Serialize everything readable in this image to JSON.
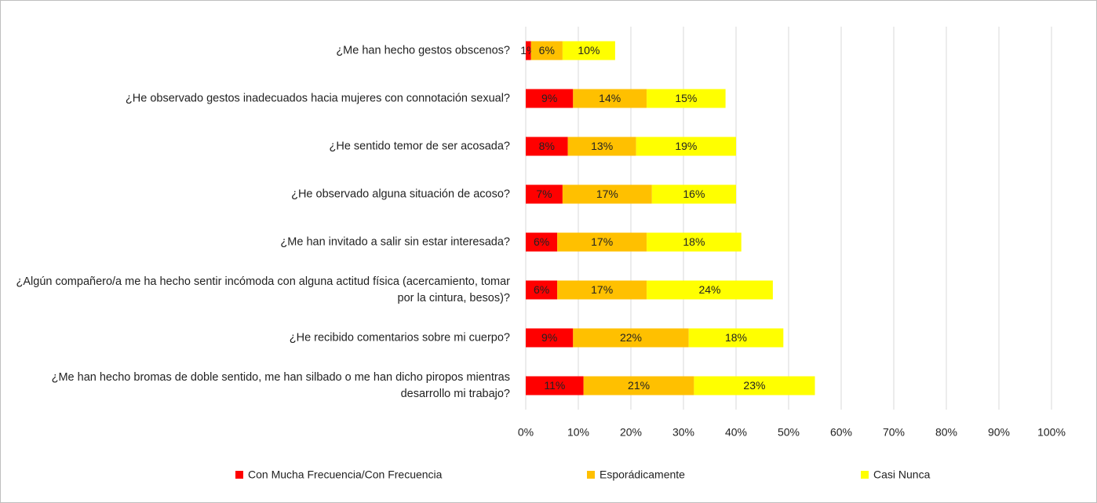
{
  "chart_data": {
    "type": "stacked_barh",
    "categories": [
      "¿Me han hecho gestos obscenos?",
      "¿He observado gestos inadecuados hacia mujeres con connotación sexual?",
      "¿He sentido temor de ser acosada?",
      "¿He observado alguna situación de acoso?",
      "¿Me han invitado a salir sin estar interesada?",
      "¿Algún compañero/a me ha hecho sentir incómoda con alguna actitud física (acercamiento, tomar por la cintura, besos)?",
      "¿He recibido comentarios sobre mi cuerpo?",
      "¿Me han hecho bromas de doble sentido, me han silbado o me han dicho piropos mientras desarrollo mi trabajo?"
    ],
    "series": [
      {
        "name": "Con Mucha Frecuencia/Con Frecuencia",
        "color": "#ff0000",
        "values": [
          1,
          9,
          8,
          7,
          6,
          6,
          9,
          11
        ],
        "value_labels": [
          "1%",
          "9%",
          "8%",
          "7%",
          "6%",
          "6%",
          "9%",
          "11%"
        ]
      },
      {
        "name": "Esporádicamente",
        "color": "#ffc000",
        "values": [
          6,
          14,
          13,
          17,
          17,
          17,
          22,
          21
        ],
        "value_labels": [
          "6%",
          "14%",
          "13%",
          "17%",
          "17%",
          "17%",
          "22%",
          "21%"
        ]
      },
      {
        "name": "Casi Nunca",
        "color": "#ffff00",
        "values": [
          10,
          15,
          19,
          16,
          18,
          24,
          18,
          23
        ],
        "value_labels": [
          "10%",
          "15%",
          "19%",
          "16%",
          "18%",
          "24%",
          "18%",
          "23%"
        ]
      }
    ],
    "xlim": [
      0,
      100
    ],
    "xticks": [
      {
        "value": 0,
        "label": "0%"
      },
      {
        "value": 10,
        "label": "10%"
      },
      {
        "value": 20,
        "label": "20%"
      },
      {
        "value": 30,
        "label": "30%"
      },
      {
        "value": 40,
        "label": "40%"
      },
      {
        "value": 50,
        "label": "50%"
      },
      {
        "value": 60,
        "label": "60%"
      },
      {
        "value": 70,
        "label": "70%"
      },
      {
        "value": 80,
        "label": "80%"
      },
      {
        "value": 90,
        "label": "90%"
      },
      {
        "value": 100,
        "label": "100%"
      }
    ],
    "grid": true,
    "legend": "bottom"
  }
}
